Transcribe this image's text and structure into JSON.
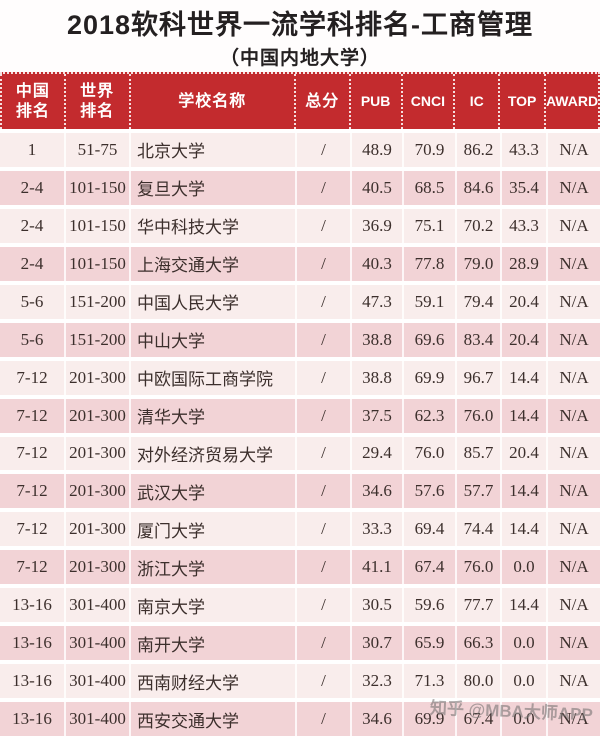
{
  "header": {
    "title": "2018软科世界一流学科排名-工商管理",
    "subtitle": "（中国内地大学）"
  },
  "table": {
    "columns": [
      {
        "key": "cn-rank",
        "label": "中国排名",
        "label_lines": [
          "中国",
          "排名"
        ],
        "width": 64,
        "latin": false
      },
      {
        "key": "world-rank",
        "label": "世界排名",
        "label_lines": [
          "世界",
          "排名"
        ],
        "width": 65,
        "latin": false
      },
      {
        "key": "school",
        "label": "学校名称",
        "label_lines": [
          "学校名称"
        ],
        "width": 166,
        "latin": false
      },
      {
        "key": "total",
        "label": "总分",
        "label_lines": [
          "总分"
        ],
        "width": 55,
        "latin": false
      },
      {
        "key": "pub",
        "label": "PUB",
        "label_lines": [
          "PUB"
        ],
        "width": 52,
        "latin": true
      },
      {
        "key": "cnci",
        "label": "CNCI",
        "label_lines": [
          "CNCI"
        ],
        "width": 53,
        "latin": true
      },
      {
        "key": "ic",
        "label": "IC",
        "label_lines": [
          "IC"
        ],
        "width": 45,
        "latin": true
      },
      {
        "key": "top",
        "label": "TOP",
        "label_lines": [
          "TOP"
        ],
        "width": 46,
        "latin": true
      },
      {
        "key": "award",
        "label": "AWARD",
        "label_lines": [
          "AWARD"
        ],
        "width": 54,
        "latin": true
      }
    ]
  },
  "chart_data": {
    "type": "table",
    "title": "2018软科世界一流学科排名-工商管理",
    "subtitle": "（中国内地大学）",
    "columns": [
      "中国排名",
      "世界排名",
      "学校名称",
      "总分",
      "PUB",
      "CNCI",
      "IC",
      "TOP",
      "AWARD"
    ],
    "rows": [
      [
        "1",
        "51-75",
        "北京大学",
        "/",
        "48.9",
        "70.9",
        "86.2",
        "43.3",
        "N/A"
      ],
      [
        "2-4",
        "101-150",
        "复旦大学",
        "/",
        "40.5",
        "68.5",
        "84.6",
        "35.4",
        "N/A"
      ],
      [
        "2-4",
        "101-150",
        "华中科技大学",
        "/",
        "36.9",
        "75.1",
        "70.2",
        "43.3",
        "N/A"
      ],
      [
        "2-4",
        "101-150",
        "上海交通大学",
        "/",
        "40.3",
        "77.8",
        "79.0",
        "28.9",
        "N/A"
      ],
      [
        "5-6",
        "151-200",
        "中国人民大学",
        "/",
        "47.3",
        "59.1",
        "79.4",
        "20.4",
        "N/A"
      ],
      [
        "5-6",
        "151-200",
        "中山大学",
        "/",
        "38.8",
        "69.6",
        "83.4",
        "20.4",
        "N/A"
      ],
      [
        "7-12",
        "201-300",
        "中欧国际工商学院",
        "/",
        "38.8",
        "69.9",
        "96.7",
        "14.4",
        "N/A"
      ],
      [
        "7-12",
        "201-300",
        "清华大学",
        "/",
        "37.5",
        "62.3",
        "76.0",
        "14.4",
        "N/A"
      ],
      [
        "7-12",
        "201-300",
        "对外经济贸易大学",
        "/",
        "29.4",
        "76.0",
        "85.7",
        "20.4",
        "N/A"
      ],
      [
        "7-12",
        "201-300",
        "武汉大学",
        "/",
        "34.6",
        "57.6",
        "57.7",
        "14.4",
        "N/A"
      ],
      [
        "7-12",
        "201-300",
        "厦门大学",
        "/",
        "33.3",
        "69.4",
        "74.4",
        "14.4",
        "N/A"
      ],
      [
        "7-12",
        "201-300",
        "浙江大学",
        "/",
        "41.1",
        "67.4",
        "76.0",
        "0.0",
        "N/A"
      ],
      [
        "13-16",
        "301-400",
        "南京大学",
        "/",
        "30.5",
        "59.6",
        "77.7",
        "14.4",
        "N/A"
      ],
      [
        "13-16",
        "301-400",
        "南开大学",
        "/",
        "30.7",
        "65.9",
        "66.3",
        "0.0",
        "N/A"
      ],
      [
        "13-16",
        "301-400",
        "西南财经大学",
        "/",
        "32.3",
        "71.3",
        "80.0",
        "0.0",
        "N/A"
      ],
      [
        "13-16",
        "301-400",
        "西安交通大学",
        "/",
        "34.6",
        "69.9",
        "67.4",
        "0.0",
        "N/A"
      ]
    ]
  },
  "watermark": {
    "text": "知乎 @MBA大师APP"
  },
  "colors": {
    "header_bg": "#c32b2e",
    "header_text": "#ffffff",
    "row_light": "#f9edec",
    "row_dark": "#f2d3d6",
    "title_text": "#242021",
    "body_text": "#3c2f2c",
    "watermark_text": "#7c7878"
  }
}
